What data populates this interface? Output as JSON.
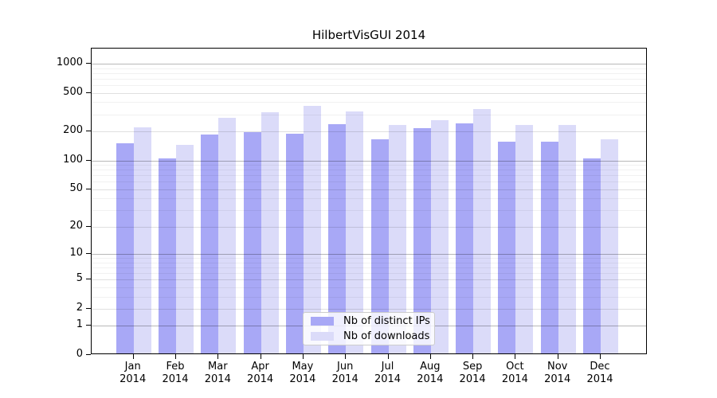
{
  "title": "HilbertVisGUI 2014",
  "chart_data": {
    "type": "bar",
    "title": "HilbertVisGUI 2014",
    "xlabel": "",
    "ylabel": "",
    "scale": "log1p",
    "grid": true,
    "legend_position": "bottom-center",
    "categories": [
      "Jan 2014",
      "Feb 2014",
      "Mar 2014",
      "Apr 2014",
      "May 2014",
      "Jun 2014",
      "Jul 2014",
      "Aug 2014",
      "Sep 2014",
      "Oct 2014",
      "Nov 2014",
      "Dec 2014"
    ],
    "series": [
      {
        "name": "Nb of distinct IPs",
        "color": "#a8a8f6",
        "values": [
          146,
          101,
          179,
          190,
          182,
          230,
          159,
          207,
          232,
          150,
          150,
          101
        ]
      },
      {
        "name": "Nb of downloads",
        "color": "#dbdbf9",
        "values": [
          210,
          139,
          264,
          305,
          351,
          308,
          223,
          252,
          329,
          225,
          225,
          159
        ]
      }
    ],
    "y_ticks": [
      0,
      1,
      2,
      5,
      10,
      20,
      50,
      100,
      200,
      500,
      1000
    ],
    "ylim": [
      0,
      1430
    ]
  }
}
